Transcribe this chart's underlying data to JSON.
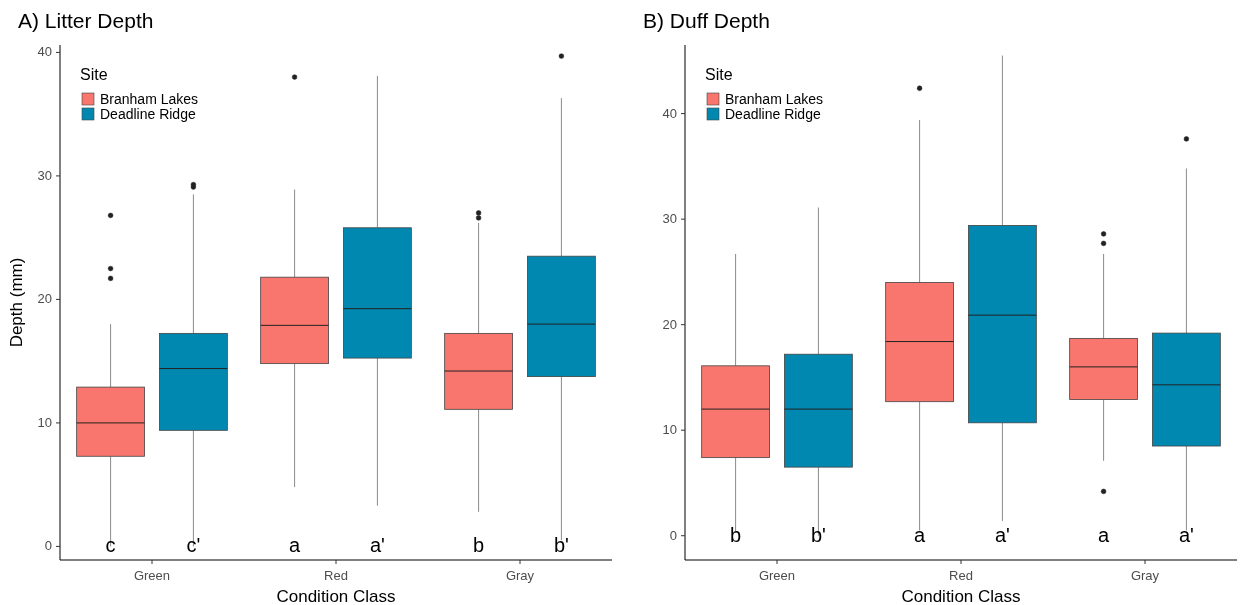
{
  "chart_data": [
    {
      "type": "box",
      "title": "A)  Litter Depth",
      "xlabel": "Condition Class",
      "ylabel": "Depth (mm)",
      "legend_title": "Site",
      "legend": "top left",
      "categories": [
        "Green",
        "Red",
        "Gray"
      ],
      "ylim": [
        -1.1,
        40.6
      ],
      "yticks": [
        0,
        10,
        20,
        30,
        40
      ],
      "series": [
        {
          "name": "Branham Lakes",
          "color": "#f8766d",
          "boxes": [
            {
              "low": 0,
              "q1": 7.3,
              "median": 10,
              "q3": 12.9,
              "high": 18,
              "outliers": [
                26.8,
                22.5,
                21.7
              ]
            },
            {
              "low": 4.8,
              "q1": 14.8,
              "median": 17.9,
              "q3": 21.8,
              "high": 28.9,
              "outliers": [
                38
              ]
            },
            {
              "low": 2.8,
              "q1": 11.1,
              "median": 14.2,
              "q3": 17.25,
              "high": 26.2,
              "outliers": [
                26.6,
                27
              ]
            }
          ]
        },
        {
          "name": "Deadline Ridge",
          "color": "#0088b0",
          "boxes": [
            {
              "low": 0,
              "q1": 9.4,
              "median": 14.4,
              "q3": 17.25,
              "high": 28.5,
              "outliers": [
                29.1,
                29.3
              ]
            },
            {
              "low": 3.3,
              "q1": 15.25,
              "median": 19.25,
              "q3": 25.8,
              "high": 38.1
            },
            {
              "low": 0.5,
              "q1": 13.75,
              "median": 18,
              "q3": 23.5,
              "high": 36.3,
              "outliers": [
                39.7
              ]
            }
          ]
        }
      ],
      "annotations": [
        "c",
        "c'",
        "a",
        "a'",
        "b",
        "b'"
      ]
    },
    {
      "type": "box",
      "title": "B)  Duff Depth",
      "xlabel": "Condition Class",
      "legend_title": "Site",
      "legend": "top left",
      "categories": [
        "Green",
        "Red",
        "Gray"
      ],
      "ylim": [
        -2.3,
        46.5
      ],
      "yticks": [
        0,
        10,
        20,
        30,
        40
      ],
      "series": [
        {
          "name": "Branham Lakes",
          "color": "#f8766d",
          "boxes": [
            {
              "low": 0.3,
              "q1": 7.4,
              "median": 12,
              "q3": 16.1,
              "high": 26.7
            },
            {
              "low": 0.5,
              "q1": 12.7,
              "median": 18.4,
              "q3": 24,
              "high": 39.4,
              "outliers": [
                42.4
              ]
            },
            {
              "low": 7.1,
              "q1": 12.9,
              "median": 16,
              "q3": 18.7,
              "high": 26.7,
              "outliers": [
                28.6,
                27.7,
                4.2
              ]
            }
          ]
        },
        {
          "name": "Deadline Ridge",
          "color": "#0088b0",
          "boxes": [
            {
              "low": 0,
              "q1": 6.5,
              "median": 12,
              "q3": 17.2,
              "high": 31.1
            },
            {
              "low": 1.4,
              "q1": 10.7,
              "median": 20.9,
              "q3": 29.4,
              "high": 45.5
            },
            {
              "low": 0.5,
              "q1": 8.5,
              "median": 14.3,
              "q3": 19.2,
              "high": 34.8,
              "outliers": [
                37.6
              ]
            }
          ]
        }
      ],
      "annotations": [
        "b",
        "b'",
        "a",
        "a'",
        "a",
        "a'"
      ]
    }
  ]
}
